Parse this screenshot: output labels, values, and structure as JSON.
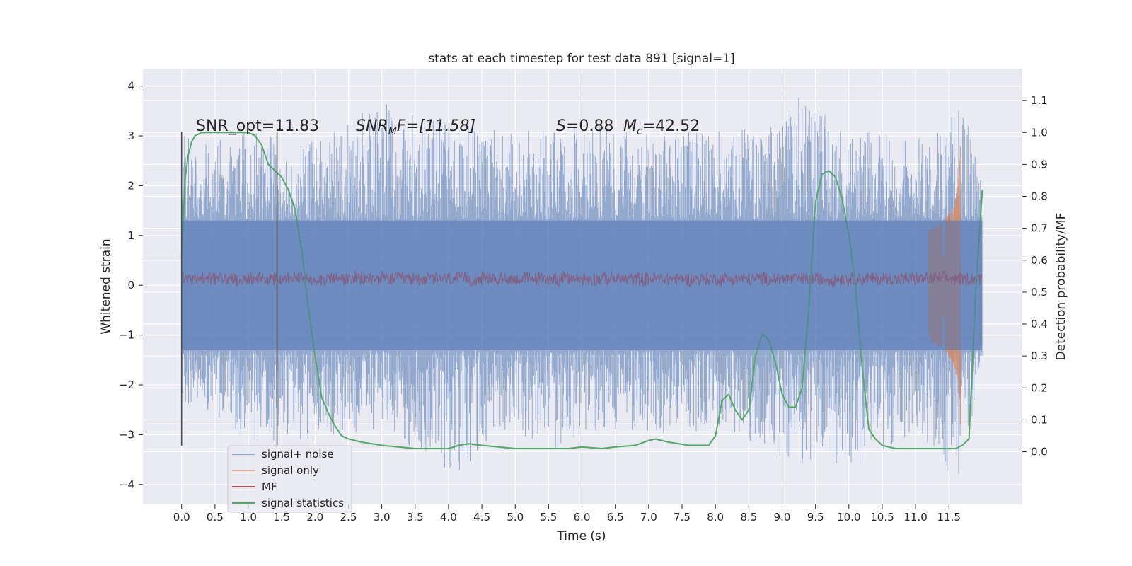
{
  "chart_data": {
    "type": "line",
    "title": "stats at each timestep for test data 891 [signal=1]",
    "xlabel": "Time (s)",
    "ylabel": "Whitened strain",
    "y2label": "Detection probability/MF",
    "xlim": [
      -0.58,
      12.6
    ],
    "ylim": [
      -4.4,
      4.35
    ],
    "y2lim": [
      -0.165,
      1.2
    ],
    "x_ticks": [
      0.0,
      0.5,
      1.0,
      1.5,
      2.0,
      2.5,
      3.0,
      3.5,
      4.0,
      4.5,
      5.0,
      5.5,
      6.0,
      6.5,
      7.0,
      7.5,
      8.0,
      8.5,
      9.0,
      9.5,
      10.0,
      10.5,
      11.0,
      11.5
    ],
    "x_tick_labels": [
      "0.0",
      "0.5",
      "1.0",
      "1.5",
      "2.0",
      "2.5",
      "3.0",
      "3.5",
      "4.0",
      "4.5",
      "5.0",
      "5.5",
      "6.0",
      "6.5",
      "7.0",
      "7.5",
      "8.0",
      "8.5",
      "9.0",
      "9.5",
      "10.0",
      "10.5",
      "11.0",
      "11.5"
    ],
    "y_ticks": [
      -4,
      -3,
      -2,
      -1,
      0,
      1,
      2,
      3,
      4
    ],
    "y_tick_labels": [
      "−4",
      "−3",
      "−2",
      "−1",
      "0",
      "1",
      "2",
      "3",
      "4"
    ],
    "y2_ticks": [
      0.0,
      0.1,
      0.2,
      0.3,
      0.4,
      0.5,
      0.6,
      0.7,
      0.8,
      0.9,
      1.0,
      1.1
    ],
    "y2_tick_labels": [
      "0.0",
      "0.1",
      "0.2",
      "0.3",
      "0.4",
      "0.5",
      "0.6",
      "0.7",
      "0.8",
      "0.9",
      "1.0",
      "1.1"
    ],
    "grid": true,
    "legend_position": "lower-left",
    "colors": {
      "background": "#eaeaf2",
      "grid": "#ffffff",
      "signal_noise": "#4c72b0",
      "signal_only": "#dd8452",
      "mf": "#c44e52",
      "signal_statistics": "#55a868",
      "vline": "#4d4d4d"
    },
    "annotations": {
      "snr_opt": "SNR_opt=11.83",
      "snr_mf_italic": "SNR",
      "snr_mf_sub": "M",
      "snr_mf_tail": "F=[11.58]",
      "s_italic": "S",
      "s_value": "=0.88",
      "mc_italic": "M",
      "mc_sub": "c",
      "mc_value": "=42.52"
    },
    "vertical_lines": [
      {
        "x": 0.0,
        "y_range": [
          -3.22,
          3.08
        ]
      },
      {
        "x": 1.43,
        "y_range": [
          -3.22,
          3.08
        ]
      }
    ],
    "series": [
      {
        "name": "signal+ noise",
        "axis": "left",
        "render": "noise",
        "x_range": [
          0.0,
          12.0
        ],
        "envelope_upper": {
          "x": [
            0.0,
            0.5,
            1.0,
            1.5,
            2.0,
            3.0,
            4.0,
            5.0,
            6.0,
            7.0,
            8.0,
            9.0,
            9.15,
            10.0,
            11.0,
            11.5,
            11.65,
            11.9,
            12.0
          ],
          "y": [
            3.0,
            3.0,
            3.1,
            3.0,
            2.9,
            3.7,
            3.3,
            3.1,
            3.2,
            3.1,
            3.1,
            3.2,
            3.9,
            3.1,
            3.0,
            3.3,
            3.7,
            2.9,
            2.4
          ]
        },
        "envelope_lower": {
          "x": [
            0.0,
            0.5,
            1.0,
            2.0,
            3.0,
            4.1,
            5.0,
            5.5,
            6.0,
            7.0,
            8.0,
            8.7,
            9.5,
            10.2,
            11.0,
            11.6,
            11.65,
            12.0
          ],
          "y": [
            -2.4,
            -2.6,
            -3.2,
            -3.1,
            -2.9,
            -3.8,
            -2.9,
            -3.4,
            -3.0,
            -3.0,
            -2.9,
            -3.3,
            -3.7,
            -3.6,
            -3.0,
            -4.0,
            -4.1,
            -1.5
          ]
        },
        "band_upper": 1.3,
        "band_lower": -1.3
      },
      {
        "name": "signal only",
        "axis": "left",
        "render": "chirp",
        "x_range": [
          11.2,
          11.72
        ],
        "peak_time": 11.68,
        "peak_amplitude": 2.8
      },
      {
        "name": "MF",
        "axis": "left",
        "render": "noise-thin",
        "x_range": [
          0.0,
          12.0
        ],
        "center": 0.13,
        "half_width": 0.17
      },
      {
        "name": "signal statistics",
        "axis": "right",
        "render": "line",
        "x": [
          0.0,
          0.05,
          0.1,
          0.15,
          0.2,
          0.3,
          0.5,
          0.8,
          1.0,
          1.1,
          1.2,
          1.3,
          1.4,
          1.45,
          1.5,
          1.6,
          1.7,
          1.8,
          1.9,
          2.0,
          2.1,
          2.2,
          2.3,
          2.4,
          2.5,
          2.7,
          3.0,
          3.5,
          4.0,
          4.15,
          4.3,
          4.5,
          5.0,
          5.5,
          5.8,
          6.0,
          6.3,
          6.5,
          6.8,
          7.0,
          7.1,
          7.3,
          7.6,
          7.9,
          8.0,
          8.1,
          8.2,
          8.3,
          8.4,
          8.5,
          8.6,
          8.7,
          8.8,
          8.9,
          9.0,
          9.1,
          9.2,
          9.3,
          9.4,
          9.5,
          9.6,
          9.7,
          9.8,
          9.9,
          10.0,
          10.1,
          10.2,
          10.3,
          10.4,
          10.5,
          10.7,
          11.0,
          11.3,
          11.5,
          11.6,
          11.7,
          11.8,
          11.9,
          12.0
        ],
        "y": [
          0.61,
          0.85,
          0.93,
          0.97,
          0.99,
          1.0,
          1.0,
          1.0,
          1.0,
          0.99,
          0.96,
          0.9,
          0.88,
          0.87,
          0.86,
          0.82,
          0.76,
          0.63,
          0.45,
          0.3,
          0.17,
          0.12,
          0.08,
          0.05,
          0.04,
          0.03,
          0.02,
          0.01,
          0.01,
          0.02,
          0.025,
          0.02,
          0.01,
          0.01,
          0.01,
          0.015,
          0.01,
          0.015,
          0.02,
          0.035,
          0.04,
          0.03,
          0.02,
          0.02,
          0.05,
          0.16,
          0.18,
          0.13,
          0.1,
          0.13,
          0.3,
          0.37,
          0.35,
          0.28,
          0.18,
          0.14,
          0.14,
          0.2,
          0.45,
          0.78,
          0.87,
          0.88,
          0.86,
          0.79,
          0.68,
          0.52,
          0.26,
          0.07,
          0.04,
          0.02,
          0.01,
          0.01,
          0.01,
          0.01,
          0.01,
          0.02,
          0.04,
          0.5,
          0.82
        ]
      }
    ]
  }
}
